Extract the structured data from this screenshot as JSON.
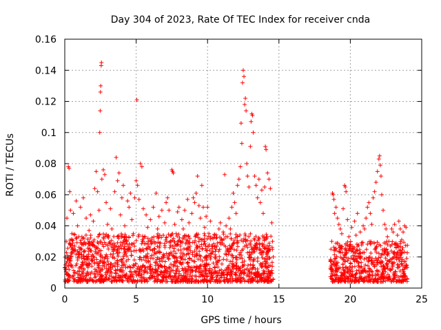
{
  "chart_data": {
    "type": "scatter",
    "title": "Day 304 of 2023, Rate Of TEC Index for receiver cnda",
    "xlabel": "GPS time / hours",
    "ylabel": "ROTI / TECUs",
    "xlim": [
      0,
      25
    ],
    "ylim": [
      0,
      0.16
    ],
    "x_ticks": [
      "0",
      "5",
      "10",
      "15",
      "20",
      "25"
    ],
    "y_ticks": [
      "0",
      "0.02",
      "0.04",
      "0.06",
      "0.08",
      "0.1",
      "0.12",
      "0.14",
      "0.16"
    ],
    "grid": true,
    "marker": "+",
    "color": "#ff0000",
    "series": [
      {
        "points": [
          [
            0.05,
            0.012
          ],
          [
            0.1,
            0.03
          ],
          [
            0.15,
            0.045
          ],
          [
            0.2,
            0.021
          ],
          [
            0.25,
            0.078
          ],
          [
            0.3,
            0.077
          ],
          [
            0.35,
            0.062
          ],
          [
            0.4,
            0.05
          ],
          [
            0.5,
            0.035
          ],
          [
            0.6,
            0.048
          ],
          [
            0.7,
            0.027
          ],
          [
            0.8,
            0.056
          ],
          [
            0.9,
            0.04
          ],
          [
            1.0,
            0.02
          ],
          [
            1.1,
            0.052
          ],
          [
            1.2,
            0.033
          ],
          [
            1.3,
            0.058
          ],
          [
            1.4,
            0.024
          ],
          [
            1.5,
            0.045
          ],
          [
            1.6,
            0.019
          ],
          [
            1.7,
            0.037
          ],
          [
            1.8,
            0.047
          ],
          [
            1.9,
            0.028
          ],
          [
            2.0,
            0.043
          ],
          [
            2.1,
            0.064
          ],
          [
            2.2,
            0.075
          ],
          [
            2.3,
            0.062
          ],
          [
            2.4,
            0.05
          ],
          [
            2.45,
            0.1
          ],
          [
            2.48,
            0.114
          ],
          [
            2.5,
            0.126
          ],
          [
            2.52,
            0.13
          ],
          [
            2.55,
            0.143
          ],
          [
            2.57,
            0.145
          ],
          [
            2.6,
            0.07
          ],
          [
            2.7,
            0.076
          ],
          [
            2.8,
            0.073
          ],
          [
            2.9,
            0.055
          ],
          [
            3.0,
            0.041
          ],
          [
            3.1,
            0.029
          ],
          [
            3.2,
            0.051
          ],
          [
            3.3,
            0.038
          ],
          [
            3.4,
            0.022
          ],
          [
            3.5,
            0.062
          ],
          [
            3.6,
            0.084
          ],
          [
            3.7,
            0.069
          ],
          [
            3.8,
            0.074
          ],
          [
            3.9,
            0.047
          ],
          [
            4.0,
            0.058
          ],
          [
            4.1,
            0.066
          ],
          [
            4.2,
            0.04
          ],
          [
            4.3,
            0.03
          ],
          [
            4.4,
            0.056
          ],
          [
            4.5,
            0.052
          ],
          [
            4.6,
            0.061
          ],
          [
            4.7,
            0.044
          ],
          [
            4.8,
            0.035
          ],
          [
            4.9,
            0.058
          ],
          [
            5.0,
            0.069
          ],
          [
            5.05,
            0.121
          ],
          [
            5.1,
            0.066
          ],
          [
            5.2,
            0.057
          ],
          [
            5.3,
            0.08
          ],
          [
            5.4,
            0.078
          ],
          [
            5.5,
            0.051
          ],
          [
            5.6,
            0.033
          ],
          [
            5.7,
            0.047
          ],
          [
            5.8,
            0.039
          ],
          [
            5.9,
            0.026
          ],
          [
            6.0,
            0.044
          ],
          [
            6.1,
            0.031
          ],
          [
            6.2,
            0.052
          ],
          [
            6.3,
            0.025
          ],
          [
            6.4,
            0.061
          ],
          [
            6.5,
            0.038
          ],
          [
            6.6,
            0.046
          ],
          [
            6.7,
            0.029
          ],
          [
            6.8,
            0.05
          ],
          [
            6.9,
            0.034
          ],
          [
            7.0,
            0.042
          ],
          [
            7.1,
            0.055
          ],
          [
            7.2,
            0.058
          ],
          [
            7.3,
            0.05
          ],
          [
            7.4,
            0.03
          ],
          [
            7.5,
            0.076
          ],
          [
            7.55,
            0.075
          ],
          [
            7.6,
            0.074
          ],
          [
            7.7,
            0.041
          ],
          [
            7.8,
            0.035
          ],
          [
            7.9,
            0.049
          ],
          [
            8.0,
            0.052
          ],
          [
            8.1,
            0.027
          ],
          [
            8.2,
            0.044
          ],
          [
            8.3,
            0.038
          ],
          [
            8.4,
            0.05
          ],
          [
            8.5,
            0.031
          ],
          [
            8.6,
            0.057
          ],
          [
            8.7,
            0.042
          ],
          [
            8.8,
            0.024
          ],
          [
            8.9,
            0.048
          ],
          [
            9.0,
            0.058
          ],
          [
            9.1,
            0.055
          ],
          [
            9.2,
            0.061
          ],
          [
            9.3,
            0.072
          ],
          [
            9.4,
            0.053
          ],
          [
            9.5,
            0.045
          ],
          [
            9.6,
            0.066
          ],
          [
            9.7,
            0.052
          ],
          [
            9.8,
            0.039
          ],
          [
            9.9,
            0.046
          ],
          [
            10.0,
            0.052
          ],
          [
            10.1,
            0.035
          ],
          [
            10.2,
            0.043
          ],
          [
            10.3,
            0.027
          ],
          [
            10.4,
            0.016
          ],
          [
            10.5,
            0.034
          ],
          [
            10.6,
            0.025
          ],
          [
            10.7,
            0.029
          ],
          [
            10.8,
            0.038
          ],
          [
            10.9,
            0.042
          ],
          [
            11.0,
            0.031
          ],
          [
            11.1,
            0.036
          ],
          [
            11.2,
            0.073
          ],
          [
            11.3,
            0.04
          ],
          [
            11.4,
            0.033
          ],
          [
            11.5,
            0.045
          ],
          [
            11.6,
            0.038
          ],
          [
            11.7,
            0.052
          ],
          [
            11.8,
            0.061
          ],
          [
            11.9,
            0.055
          ],
          [
            12.0,
            0.048
          ],
          [
            12.1,
            0.066
          ],
          [
            12.2,
            0.07
          ],
          [
            12.3,
            0.078
          ],
          [
            12.35,
            0.106
          ],
          [
            12.4,
            0.093
          ],
          [
            12.45,
            0.132
          ],
          [
            12.5,
            0.14
          ],
          [
            12.55,
            0.136
          ],
          [
            12.6,
            0.118
          ],
          [
            12.65,
            0.122
          ],
          [
            12.7,
            0.114
          ],
          [
            12.75,
            0.08
          ],
          [
            12.8,
            0.072
          ],
          [
            12.9,
            0.065
          ],
          [
            13.0,
            0.091
          ],
          [
            13.05,
            0.107
          ],
          [
            13.1,
            0.112
          ],
          [
            13.15,
            0.111
          ],
          [
            13.2,
            0.1
          ],
          [
            13.3,
            0.072
          ],
          [
            13.4,
            0.066
          ],
          [
            13.5,
            0.058
          ],
          [
            13.6,
            0.07
          ],
          [
            13.7,
            0.055
          ],
          [
            13.8,
            0.063
          ],
          [
            13.9,
            0.048
          ],
          [
            14.0,
            0.065
          ],
          [
            14.05,
            0.091
          ],
          [
            14.1,
            0.089
          ],
          [
            14.2,
            0.074
          ],
          [
            14.3,
            0.07
          ],
          [
            14.4,
            0.064
          ],
          [
            14.5,
            0.042
          ],
          [
            14.55,
            0.03
          ],
          [
            14.6,
            0.02
          ],
          [
            18.7,
            0.03
          ],
          [
            18.75,
            0.061
          ],
          [
            18.8,
            0.06
          ],
          [
            18.85,
            0.057
          ],
          [
            18.9,
            0.048
          ],
          [
            19.0,
            0.052
          ],
          [
            19.1,
            0.045
          ],
          [
            19.2,
            0.041
          ],
          [
            19.3,
            0.038
          ],
          [
            19.4,
            0.035
          ],
          [
            19.5,
            0.051
          ],
          [
            19.6,
            0.066
          ],
          [
            19.65,
            0.065
          ],
          [
            19.7,
            0.062
          ],
          [
            19.8,
            0.044
          ],
          [
            19.9,
            0.033
          ],
          [
            20.0,
            0.028
          ],
          [
            20.1,
            0.039
          ],
          [
            20.2,
            0.025
          ],
          [
            20.3,
            0.043
          ],
          [
            20.4,
            0.034
          ],
          [
            20.5,
            0.048
          ],
          [
            20.6,
            0.022
          ],
          [
            20.7,
            0.036
          ],
          [
            20.8,
            0.029
          ],
          [
            20.9,
            0.04
          ],
          [
            21.0,
            0.038
          ],
          [
            21.1,
            0.045
          ],
          [
            21.2,
            0.052
          ],
          [
            21.3,
            0.055
          ],
          [
            21.4,
            0.048
          ],
          [
            21.5,
            0.041
          ],
          [
            21.6,
            0.058
          ],
          [
            21.7,
            0.062
          ],
          [
            21.8,
            0.068
          ],
          [
            21.9,
            0.075
          ],
          [
            22.0,
            0.083
          ],
          [
            22.05,
            0.085
          ],
          [
            22.1,
            0.079
          ],
          [
            22.15,
            0.072
          ],
          [
            22.2,
            0.06
          ],
          [
            22.3,
            0.05
          ],
          [
            22.4,
            0.041
          ],
          [
            22.5,
            0.038
          ],
          [
            22.6,
            0.033
          ],
          [
            22.7,
            0.03
          ],
          [
            22.8,
            0.027
          ],
          [
            22.9,
            0.038
          ],
          [
            23.0,
            0.036
          ],
          [
            23.1,
            0.041
          ],
          [
            23.2,
            0.029
          ],
          [
            23.3,
            0.034
          ],
          [
            23.4,
            0.043
          ],
          [
            23.5,
            0.038
          ],
          [
            23.6,
            0.031
          ],
          [
            23.7,
            0.036
          ],
          [
            23.8,
            0.04
          ],
          [
            23.9,
            0.039
          ]
        ],
        "dense_bands": [
          {
            "x_start": 0.0,
            "x_end": 14.6,
            "y_min": 0.004,
            "y_max": 0.035
          },
          {
            "x_start": 18.6,
            "x_end": 24.0,
            "y_min": 0.004,
            "y_max": 0.03
          }
        ]
      }
    ]
  }
}
